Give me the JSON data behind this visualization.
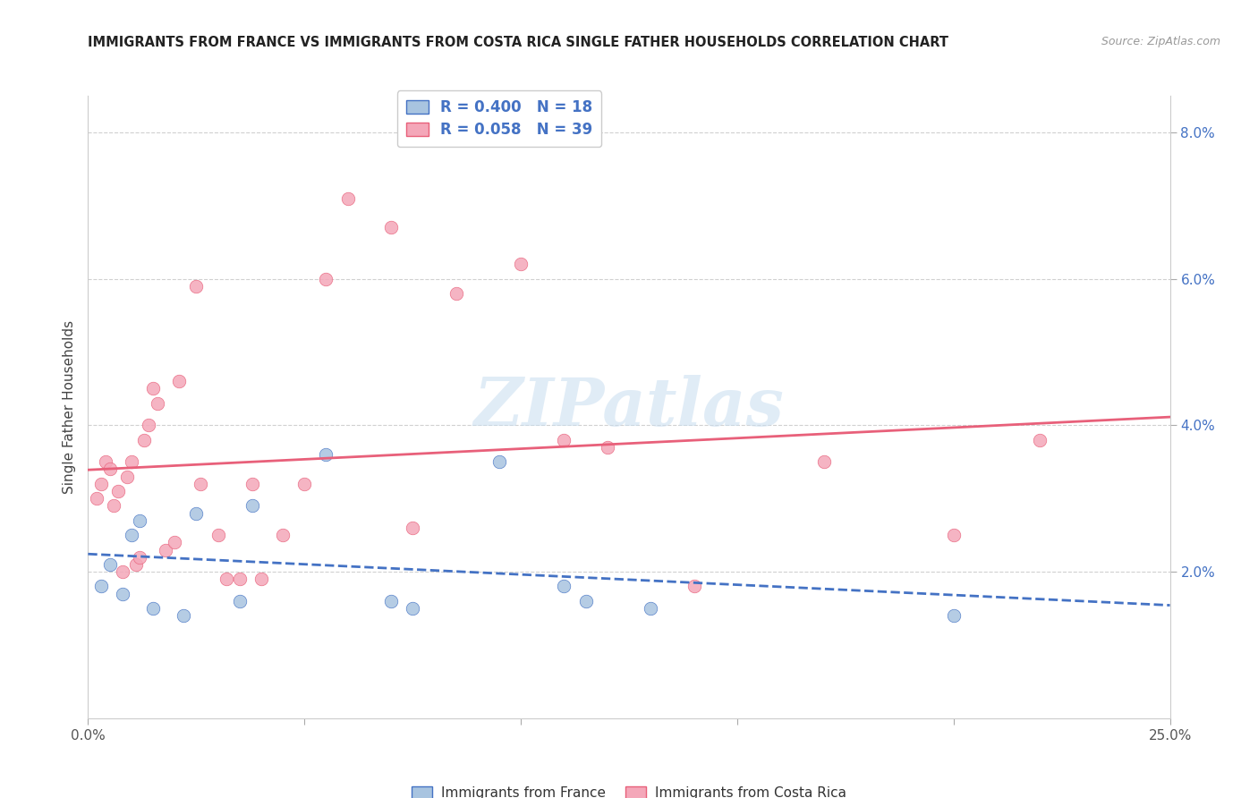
{
  "title": "IMMIGRANTS FROM FRANCE VS IMMIGRANTS FROM COSTA RICA SINGLE FATHER HOUSEHOLDS CORRELATION CHART",
  "source": "Source: ZipAtlas.com",
  "ylabel": "Single Father Households",
  "xlim": [
    0.0,
    25.0
  ],
  "ylim": [
    0.0,
    8.5
  ],
  "yticks": [
    2.0,
    4.0,
    6.0,
    8.0
  ],
  "xticks": [
    0.0,
    5.0,
    10.0,
    15.0,
    20.0,
    25.0
  ],
  "france_color": "#a8c4e0",
  "france_line_color": "#4472c4",
  "costarica_color": "#f4a7b9",
  "costarica_line_color": "#e8607a",
  "france_R": 0.4,
  "france_N": 18,
  "costarica_R": 0.058,
  "costarica_N": 39,
  "france_scatter_x": [
    0.3,
    0.5,
    0.8,
    1.0,
    1.2,
    1.5,
    2.2,
    2.5,
    3.5,
    3.8,
    5.5,
    7.0,
    7.5,
    9.5,
    11.0,
    11.5,
    13.0,
    20.0
  ],
  "france_scatter_y": [
    1.8,
    2.1,
    1.7,
    2.5,
    2.7,
    1.5,
    1.4,
    2.8,
    1.6,
    2.9,
    3.6,
    1.6,
    1.5,
    3.5,
    1.8,
    1.6,
    1.5,
    1.4
  ],
  "costarica_scatter_x": [
    0.2,
    0.3,
    0.4,
    0.5,
    0.6,
    0.7,
    0.8,
    0.9,
    1.0,
    1.1,
    1.2,
    1.3,
    1.4,
    1.5,
    1.6,
    1.8,
    2.0,
    2.1,
    2.5,
    2.6,
    3.0,
    3.2,
    3.5,
    3.8,
    4.0,
    4.5,
    5.0,
    5.5,
    6.0,
    7.0,
    7.5,
    8.5,
    10.0,
    11.0,
    12.0,
    14.0,
    17.0,
    20.0,
    22.0
  ],
  "costarica_scatter_y": [
    3.0,
    3.2,
    3.5,
    3.4,
    2.9,
    3.1,
    2.0,
    3.3,
    3.5,
    2.1,
    2.2,
    3.8,
    4.0,
    4.5,
    4.3,
    2.3,
    2.4,
    4.6,
    5.9,
    3.2,
    2.5,
    1.9,
    1.9,
    3.2,
    1.9,
    2.5,
    3.2,
    6.0,
    7.1,
    6.7,
    2.6,
    5.8,
    6.2,
    3.8,
    3.7,
    1.8,
    3.5,
    2.5,
    3.8
  ],
  "watermark": "ZIPatlas",
  "background_color": "#ffffff",
  "grid_color": "#d0d0d0"
}
